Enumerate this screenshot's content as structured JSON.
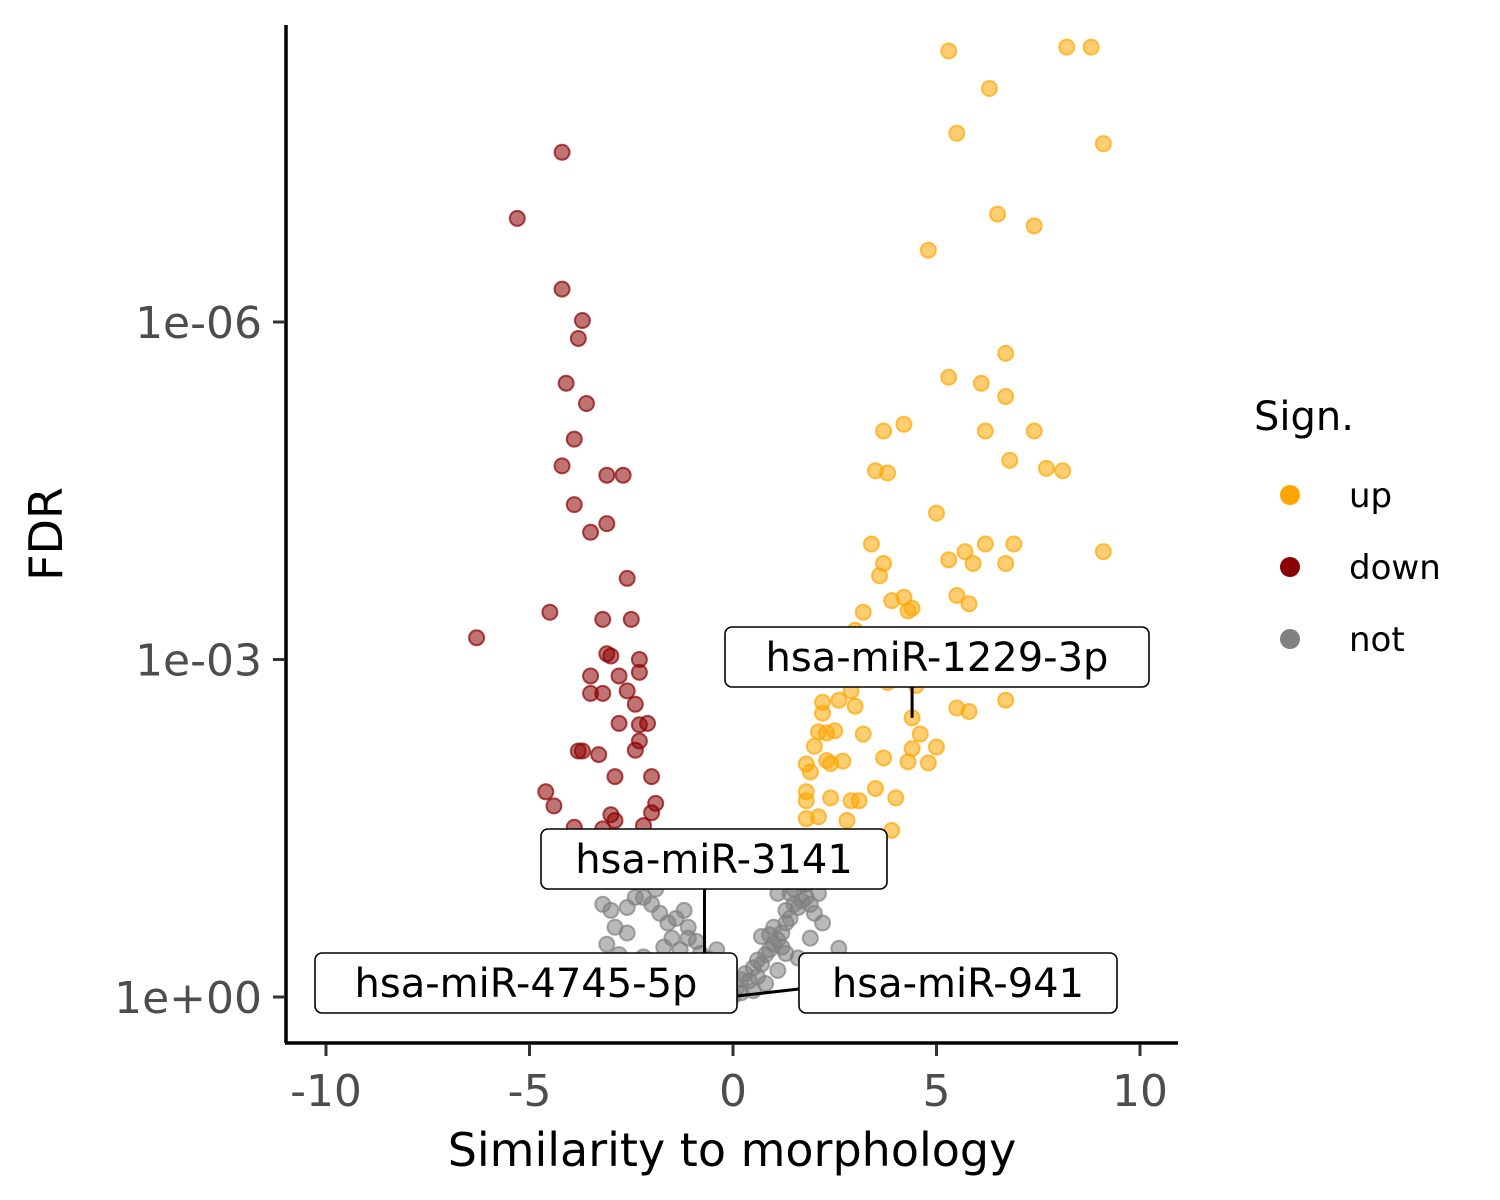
{
  "chart_data": {
    "type": "scatter",
    "xlabel": "Similarity to morphology",
    "ylabel": "FDR",
    "x_ticks": [
      "-10",
      "-5",
      "0",
      "5",
      "10"
    ],
    "y_ticks": [
      "1e+00",
      "1e-03",
      "1e-06"
    ],
    "xlim": [
      -10.2,
      10.9
    ],
    "y_scale": "log10-reversed",
    "y_log10_range": [
      0.2,
      -8.8
    ],
    "grid": false,
    "legend": {
      "title": "Sign.",
      "position": "right",
      "entries": [
        {
          "label": "up",
          "color": "#FFA500"
        },
        {
          "label": "down",
          "color": "#8B0000"
        },
        {
          "label": "not",
          "color": "#808080"
        }
      ]
    },
    "series": [
      {
        "name": "up",
        "color": "#FFA500",
        "points": [
          [
            5.3,
            3.9e-09
          ],
          [
            8.2,
            3.6e-09
          ],
          [
            8.8,
            3.6e-09
          ],
          [
            6.3,
            8.4e-09
          ],
          [
            5.5,
            2.1e-08
          ],
          [
            9.1,
            2.6e-08
          ],
          [
            6.5,
            1.1e-07
          ],
          [
            7.4,
            1.4e-07
          ],
          [
            4.8,
            2.3e-07
          ],
          [
            6.7,
            1.9e-06
          ],
          [
            5.3,
            3.1e-06
          ],
          [
            6.1,
            3.5e-06
          ],
          [
            6.7,
            4.6e-06
          ],
          [
            4.2,
            8.1e-06
          ],
          [
            3.7,
            9.3e-06
          ],
          [
            6.2,
            9.3e-06
          ],
          [
            7.4,
            9.3e-06
          ],
          [
            6.8,
            1.7e-05
          ],
          [
            7.7,
            2e-05
          ],
          [
            8.1,
            2.1e-05
          ],
          [
            3.5,
            2.1e-05
          ],
          [
            3.8,
            2.2e-05
          ],
          [
            5.0,
            5e-05
          ],
          [
            3.4,
            9.4e-05
          ],
          [
            6.2,
            9.4e-05
          ],
          [
            6.9,
            9.4e-05
          ],
          [
            9.1,
            0.00011
          ],
          [
            5.7,
            0.00011
          ],
          [
            5.3,
            0.00013
          ],
          [
            5.9,
            0.00014
          ],
          [
            6.7,
            0.00014
          ],
          [
            3.7,
            0.00014
          ],
          [
            3.6,
            0.00018
          ],
          [
            5.5,
            0.00027
          ],
          [
            4.2,
            0.00028
          ],
          [
            3.9,
            0.0003
          ],
          [
            4.4,
            0.00035
          ],
          [
            4.3,
            0.00037
          ],
          [
            5.8,
            0.00032
          ],
          [
            3.2,
            0.00038
          ],
          [
            3.0,
            0.00055
          ],
          [
            3.4,
            0.00065
          ],
          [
            6.6,
            0.0014
          ],
          [
            3.8,
            0.0016
          ],
          [
            4.3,
            0.0015
          ],
          [
            4.5,
            0.0017
          ],
          [
            2.9,
            0.0019
          ],
          [
            2.2,
            0.0024
          ],
          [
            2.6,
            0.0023
          ],
          [
            3.0,
            0.0026
          ],
          [
            5.5,
            0.0027
          ],
          [
            5.8,
            0.0029
          ],
          [
            6.7,
            0.0023
          ],
          [
            4.4,
            0.0033
          ],
          [
            2.2,
            0.003
          ],
          [
            2.1,
            0.0044
          ],
          [
            2.3,
            0.0045
          ],
          [
            2.5,
            0.0043
          ],
          [
            3.2,
            0.0046
          ],
          [
            4.6,
            0.0046
          ],
          [
            2.0,
            0.0059
          ],
          [
            4.4,
            0.0062
          ],
          [
            5.0,
            0.006
          ],
          [
            4.3,
            0.0081
          ],
          [
            4.8,
            0.0083
          ],
          [
            2.3,
            0.0079
          ],
          [
            2.7,
            0.008
          ],
          [
            3.7,
            0.0075
          ],
          [
            1.8,
            0.0085
          ],
          [
            1.9,
            0.01
          ],
          [
            2.4,
            0.0084
          ],
          [
            1.8,
            0.015
          ],
          [
            3.5,
            0.014
          ],
          [
            4.0,
            0.017
          ],
          [
            2.4,
            0.017
          ],
          [
            1.8,
            0.018
          ],
          [
            2.9,
            0.018
          ],
          [
            3.1,
            0.018
          ],
          [
            2.1,
            0.025
          ],
          [
            2.8,
            0.027
          ],
          [
            1.8,
            0.026
          ],
          [
            3.9,
            0.033
          ]
        ]
      },
      {
        "name": "down",
        "color": "#8B0000",
        "points": [
          [
            -4.2,
            3.1e-08
          ],
          [
            -5.3,
            1.2e-07
          ],
          [
            -4.2,
            5.1e-07
          ],
          [
            -3.7,
            9.7e-07
          ],
          [
            -3.8,
            1.4e-06
          ],
          [
            -4.1,
            3.5e-06
          ],
          [
            -3.6,
            5.3e-06
          ],
          [
            -3.9,
            1.1e-05
          ],
          [
            -4.2,
            1.9e-05
          ],
          [
            -3.1,
            2.3e-05
          ],
          [
            -2.7,
            2.3e-05
          ],
          [
            -3.9,
            4.2e-05
          ],
          [
            -3.1,
            6.2e-05
          ],
          [
            -3.5,
            7.4e-05
          ],
          [
            -2.6,
            0.00019
          ],
          [
            -4.5,
            0.00038
          ],
          [
            -6.3,
            0.00064
          ],
          [
            -3.2,
            0.00044
          ],
          [
            -2.5,
            0.00044
          ],
          [
            -3.1,
            0.00089
          ],
          [
            -3.0,
            0.00093
          ],
          [
            -2.3,
            0.001
          ],
          [
            -2.3,
            0.0013
          ],
          [
            -3.5,
            0.0014
          ],
          [
            -2.8,
            0.0014
          ],
          [
            -3.5,
            0.002
          ],
          [
            -3.2,
            0.002
          ],
          [
            -2.6,
            0.0019
          ],
          [
            -2.4,
            0.0025
          ],
          [
            -2.8,
            0.0037
          ],
          [
            -2.3,
            0.0038
          ],
          [
            -2.1,
            0.0037
          ],
          [
            -2.3,
            0.0053
          ],
          [
            -2.4,
            0.0064
          ],
          [
            -3.7,
            0.0065
          ],
          [
            -3.3,
            0.007
          ],
          [
            -3.8,
            0.0065
          ],
          [
            -2.9,
            0.011
          ],
          [
            -2.0,
            0.011
          ],
          [
            -4.6,
            0.015
          ],
          [
            -4.4,
            0.02
          ],
          [
            -1.9,
            0.019
          ],
          [
            -2.0,
            0.023
          ],
          [
            -3.0,
            0.024
          ],
          [
            -2.9,
            0.027
          ],
          [
            -3.2,
            0.032
          ],
          [
            -2.2,
            0.03
          ],
          [
            -3.9,
            0.031
          ]
        ]
      },
      {
        "name": "not",
        "color": "#808080",
        "points": [
          [
            -3.2,
            0.15
          ],
          [
            -3.0,
            0.17
          ],
          [
            -2.6,
            0.16
          ],
          [
            -2.9,
            0.24
          ],
          [
            -2.6,
            0.27
          ],
          [
            -2.2,
            0.13
          ],
          [
            -2.0,
            0.15
          ],
          [
            -1.8,
            0.18
          ],
          [
            -1.6,
            0.22
          ],
          [
            -1.4,
            0.2
          ],
          [
            -1.2,
            0.17
          ],
          [
            -1.1,
            0.24
          ],
          [
            -1.5,
            0.3
          ],
          [
            -1.7,
            0.36
          ],
          [
            -1.3,
            0.38
          ],
          [
            -0.9,
            0.32
          ],
          [
            -0.8,
            0.41
          ],
          [
            -0.6,
            0.46
          ],
          [
            -2.2,
            0.44
          ],
          [
            -2.8,
            0.42
          ],
          [
            -3.1,
            0.34
          ],
          [
            -1.0,
            0.48
          ],
          [
            -0.4,
            0.55
          ],
          [
            -0.7,
            0.6
          ],
          [
            -0.5,
            0.7
          ],
          [
            -0.3,
            0.78
          ],
          [
            -0.2,
            0.88
          ],
          [
            -0.1,
            0.95
          ],
          [
            0.1,
            0.82
          ],
          [
            0.2,
            0.7
          ],
          [
            0.3,
            0.62
          ],
          [
            0.4,
            0.72
          ],
          [
            0.5,
            0.55
          ],
          [
            0.6,
            0.47
          ],
          [
            0.7,
            0.51
          ],
          [
            0.8,
            0.42
          ],
          [
            0.9,
            0.38
          ],
          [
            1.0,
            0.34
          ],
          [
            1.1,
            0.31
          ],
          [
            0.9,
            0.28
          ],
          [
            1.2,
            0.27
          ],
          [
            1.0,
            0.24
          ],
          [
            1.3,
            0.22
          ],
          [
            1.4,
            0.2
          ],
          [
            1.3,
            0.17
          ],
          [
            1.5,
            0.15
          ],
          [
            1.6,
            0.16
          ],
          [
            1.7,
            0.14
          ],
          [
            1.8,
            0.13
          ],
          [
            1.9,
            0.15
          ],
          [
            2.0,
            0.18
          ],
          [
            2.2,
            0.22
          ],
          [
            1.5,
            0.11
          ],
          [
            1.7,
            0.1
          ],
          [
            1.4,
            0.12
          ],
          [
            2.6,
            0.37
          ],
          [
            0.6,
            0.66
          ],
          [
            1.1,
            0.58
          ],
          [
            0.2,
            0.92
          ],
          [
            -0.3,
            0.66
          ],
          [
            -0.8,
            0.55
          ],
          [
            0.0,
            0.99
          ],
          [
            0.5,
            0.88
          ],
          [
            0.8,
            0.76
          ],
          [
            1.6,
            0.45
          ],
          [
            1.9,
            0.3
          ],
          [
            2.1,
            0.12
          ],
          [
            -1.9,
            0.11
          ],
          [
            -2.4,
            0.13
          ],
          [
            -2.5,
            0.09
          ],
          [
            -1.6,
            0.09
          ],
          [
            1.8,
            0.1
          ],
          [
            1.1,
            0.12
          ],
          [
            1.2,
            0.36
          ],
          [
            0.7,
            0.29
          ],
          [
            -1.1,
            0.3
          ],
          [
            -0.4,
            0.38
          ],
          [
            1.3,
            0.41
          ]
        ]
      }
    ],
    "annotations": [
      {
        "text": "hsa-miR-1229-3p",
        "point": [
          4.4,
          0.0033
        ]
      },
      {
        "text": "hsa-miR-3141",
        "point": [
          -0.7,
          0.5
        ]
      },
      {
        "text": "hsa-miR-4745-5p",
        "point": [
          0.0,
          0.99
        ]
      },
      {
        "text": "hsa-miR-941",
        "point": [
          0.1,
          0.98
        ]
      }
    ]
  }
}
